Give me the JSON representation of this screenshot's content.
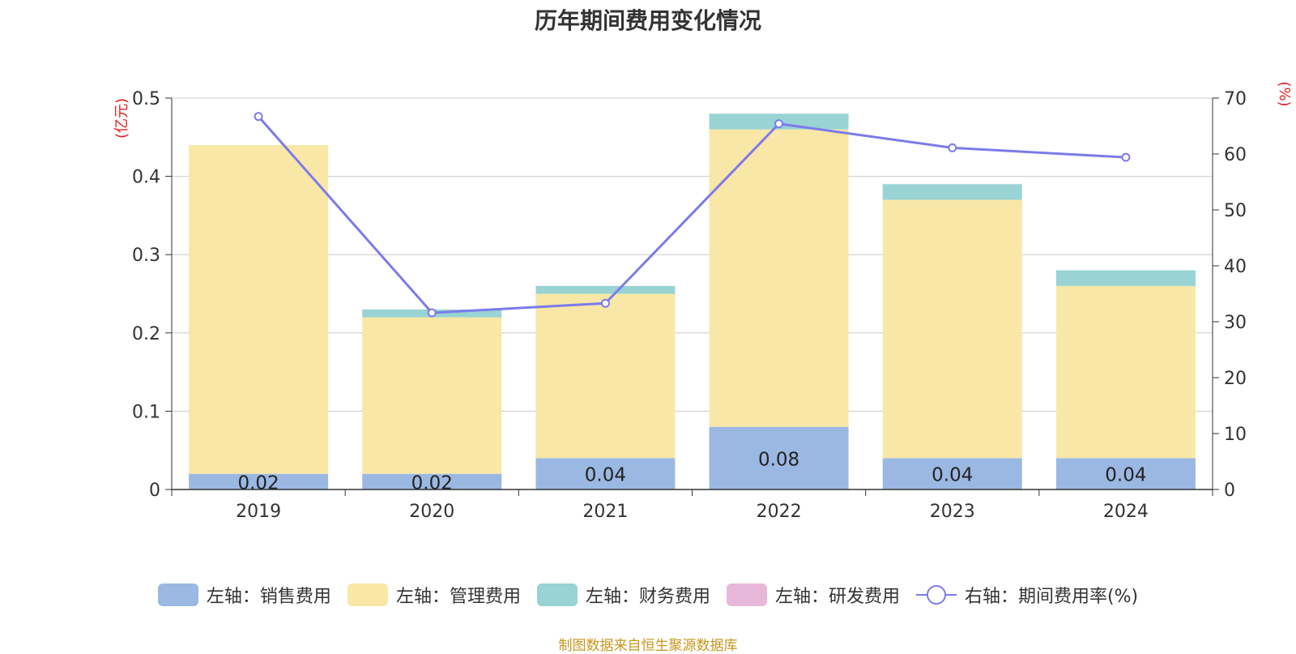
{
  "title": "历年期间费用变化情况",
  "source": "制图数据来自恒生聚源数据库",
  "chart_data": {
    "type": "bar",
    "stacked": true,
    "categories": [
      "2019",
      "2020",
      "2021",
      "2022",
      "2023",
      "2024"
    ],
    "series": [
      {
        "name": "左轴：销售费用",
        "axis": "left",
        "color": "#9bb8e3",
        "values": [
          0.02,
          0.02,
          0.04,
          0.08,
          0.04,
          0.04
        ],
        "labels": [
          "0.02",
          "0.02",
          "0.04",
          "0.08",
          "0.04",
          "0.04"
        ]
      },
      {
        "name": "左轴：管理费用",
        "axis": "left",
        "color": "#f8e7a7",
        "values": [
          0.42,
          0.2,
          0.21,
          0.38,
          0.33,
          0.22
        ]
      },
      {
        "name": "左轴：财务费用",
        "axis": "left",
        "color": "#99d3d4",
        "values": [
          0.0,
          0.01,
          0.01,
          0.02,
          0.02,
          0.02
        ]
      },
      {
        "name": "左轴：研发费用",
        "axis": "left",
        "color": "#e8b8da",
        "values": [
          0,
          0,
          0,
          0,
          0,
          0
        ]
      },
      {
        "name": "右轴：期间费用率(%)",
        "axis": "right",
        "type": "line",
        "color": "#7b7bea",
        "values": [
          66.7,
          31.6,
          33.3,
          65.4,
          61.1,
          59.4
        ]
      }
    ],
    "y_left": {
      "label": "(亿元)",
      "min": 0,
      "max": 0.5,
      "ticks": [
        "0",
        "0.1",
        "0.2",
        "0.3",
        "0.4",
        "0.5"
      ]
    },
    "y_right": {
      "label": "(%)",
      "min": 0,
      "max": 70,
      "ticks": [
        "0",
        "10",
        "20",
        "30",
        "40",
        "50",
        "60",
        "70"
      ]
    },
    "grid": true,
    "legend_position": "bottom"
  }
}
